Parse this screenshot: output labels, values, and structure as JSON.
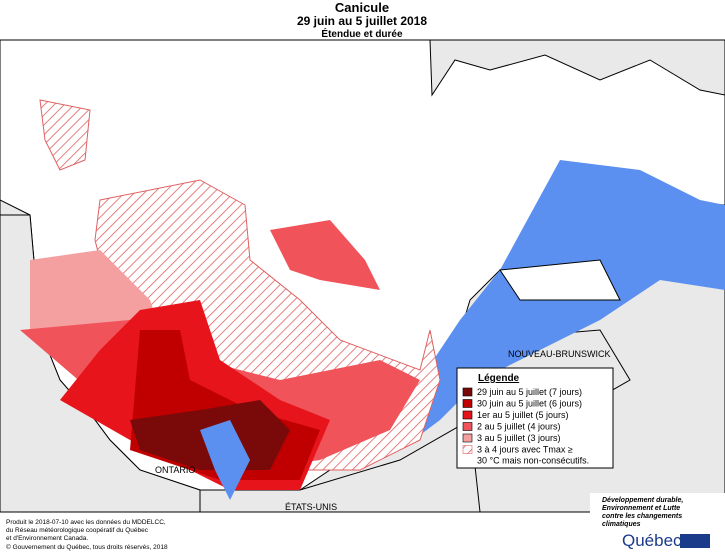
{
  "header": {
    "title": "Canicule",
    "subtitle": "29 juin au 5 juillet 2018",
    "caption": "Étendue et durée"
  },
  "legend": {
    "title": "Légende",
    "items": [
      {
        "label": "29 juin au 5 juillet (7 jours)",
        "color": "#7a0a0a"
      },
      {
        "label": "30 juin au 5 juillet (6 jours)",
        "color": "#c00000"
      },
      {
        "label": "1er au 5 juillet (5 jours)",
        "color": "#e8141b"
      },
      {
        "label": "2 au 5 juillet (4 jours)",
        "color": "#f0545a"
      },
      {
        "label": "3 au 5 juillet (3 jours)",
        "color": "#f4a0a0"
      },
      {
        "label": "3 à 4 jours avec Tmax ≥ 30 °C mais non-consécutifs.",
        "color": "#e06060",
        "hatched": true
      }
    ]
  },
  "places": [
    "NOUVEAU-BRUNSWICK",
    "ONTARIO",
    "ÉTATS-UNIS"
  ],
  "footer": {
    "lines": [
      "Produit le 2018-07-10 avec les données du MDDELCC,",
      "du Réseau météorologique coopératif du Québec",
      "et d'Environnement Canada."
    ],
    "copyright": "© Gouvernement du Québec, tous droits réservés, 2018"
  },
  "logo": {
    "lines": [
      "Développement durable,",
      "Environnement et Lutte",
      "contre les changements",
      "climatiques"
    ],
    "brand": "Québec"
  }
}
